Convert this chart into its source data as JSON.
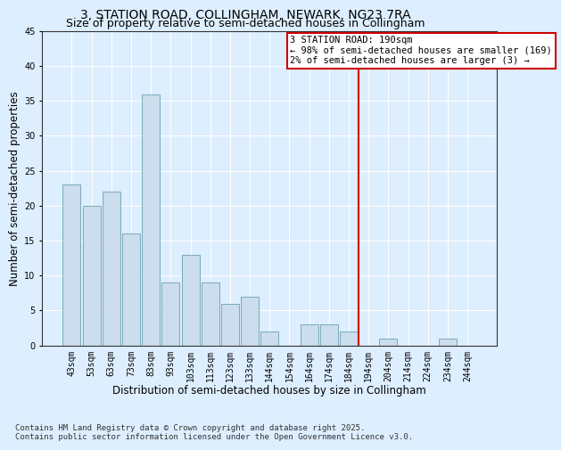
{
  "title": "3, STATION ROAD, COLLINGHAM, NEWARK, NG23 7RA",
  "subtitle": "Size of property relative to semi-detached houses in Collingham",
  "xlabel": "Distribution of semi-detached houses by size in Collingham",
  "ylabel": "Number of semi-detached properties",
  "categories": [
    "43sqm",
    "53sqm",
    "63sqm",
    "73sqm",
    "83sqm",
    "93sqm",
    "103sqm",
    "113sqm",
    "123sqm",
    "133sqm",
    "144sqm",
    "154sqm",
    "164sqm",
    "174sqm",
    "184sqm",
    "194sqm",
    "204sqm",
    "214sqm",
    "224sqm",
    "234sqm",
    "244sqm"
  ],
  "values": [
    23,
    20,
    22,
    16,
    36,
    9,
    13,
    9,
    6,
    7,
    2,
    0,
    3,
    3,
    2,
    0,
    1,
    0,
    0,
    1,
    0
  ],
  "bar_color": "#ccdded",
  "bar_edge_color": "#7aaabb",
  "line_color": "#cc0000",
  "background_color": "#ddeeff",
  "plot_bg_color": "#ddeeff",
  "ylim": [
    0,
    45
  ],
  "yticks": [
    0,
    5,
    10,
    15,
    20,
    25,
    30,
    35,
    40,
    45
  ],
  "annotation_title": "3 STATION ROAD: 190sqm",
  "annotation_line1": "← 98% of semi-detached houses are smaller (169)",
  "annotation_line2": "2% of semi-detached houses are larger (3) →",
  "annotation_box_color": "#ffffff",
  "annotation_border_color": "#cc0000",
  "footer_line1": "Contains HM Land Registry data © Crown copyright and database right 2025.",
  "footer_line2": "Contains public sector information licensed under the Open Government Licence v3.0.",
  "title_fontsize": 10,
  "subtitle_fontsize": 9,
  "axis_label_fontsize": 8.5,
  "tick_fontsize": 7,
  "annotation_fontsize": 7.5,
  "footer_fontsize": 6.5,
  "line_x_index": 14.5
}
